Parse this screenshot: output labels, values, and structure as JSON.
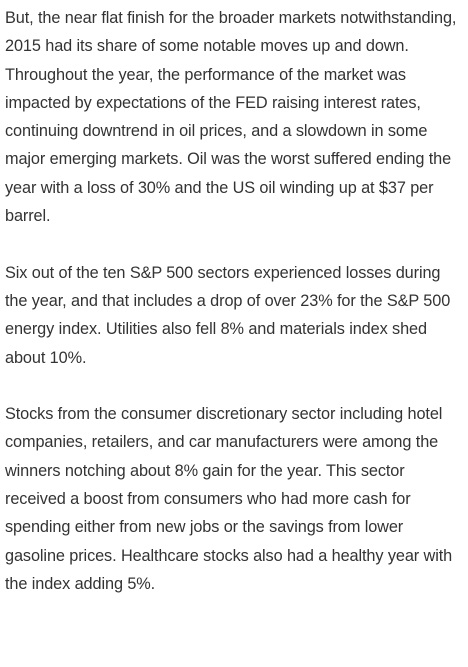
{
  "article": {
    "paragraphs": [
      "But, the near flat finish for the broader markets notwithstanding, 2015 had its share of some notable moves up and down. Throughout the year, the performance of the market was impacted by expectations of the FED raising interest rates, continuing downtrend in oil prices, and a slowdown in some major emerging markets.  Oil was the worst suffered ending the year with a loss of 30% and the US oil winding up at $37 per barrel.",
      "Six out of the ten S&P 500 sectors experienced losses during the year, and that includes a drop of over 23% for the S&P 500 energy index. Utilities also fell 8% and materials index shed about 10%.",
      "Stocks from the consumer discretionary sector including hotel companies, retailers, and car manufacturers were among the winners notching about 8% gain for the year. This sector received a boost from consumers who had more cash for spending either from new jobs or the savings from lower gasoline prices. Healthcare stocks also had a healthy year with the index adding 5%."
    ]
  }
}
